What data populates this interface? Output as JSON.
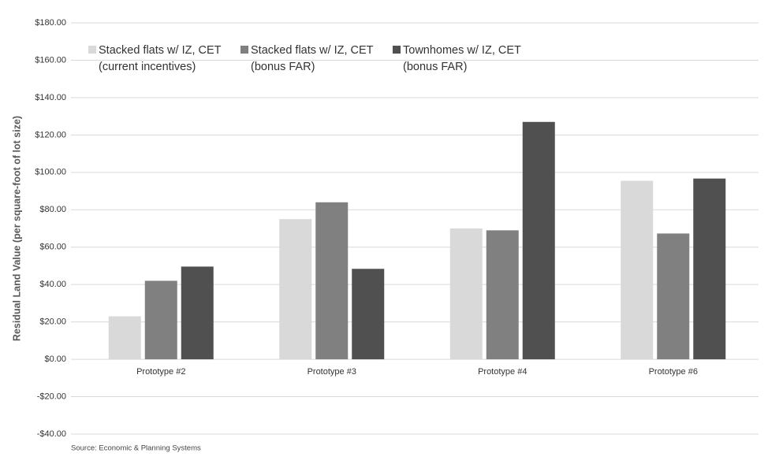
{
  "chart_data": {
    "type": "bar",
    "y_label": "Residual Land Value (per square-foot of lot size)",
    "source": "Source: Economic & Planning Systems",
    "categories": [
      "Prototype #2",
      "Prototype #3",
      "Prototype #4",
      "Prototype #6"
    ],
    "series": [
      {
        "name": "Stacked flats w/ IZ, CET (current incentives)",
        "color": "#d9d9d9",
        "values": [
          23,
          75,
          70,
          95.5
        ]
      },
      {
        "name": "Stacked flats w/ IZ, CET (bonus FAR)",
        "color": "#808080",
        "values": [
          42,
          84,
          69,
          67.3
        ]
      },
      {
        "name": "Townhomes w/ IZ, CET (bonus FAR)",
        "color": "#505050",
        "values": [
          49.6,
          48.4,
          127,
          96.7
        ]
      }
    ],
    "ylim": [
      -40,
      180
    ],
    "yticks": [
      {
        "value": -40,
        "label": "-$40.00"
      },
      {
        "value": -20,
        "label": "-$20.00"
      },
      {
        "value": 0,
        "label": "$0.00"
      },
      {
        "value": 20,
        "label": "$20.00"
      },
      {
        "value": 40,
        "label": "$40.00"
      },
      {
        "value": 60,
        "label": "$60.00"
      },
      {
        "value": 80,
        "label": "$80.00"
      },
      {
        "value": 100,
        "label": "$100.00"
      },
      {
        "value": 120,
        "label": "$120.00"
      },
      {
        "value": 140,
        "label": "$140.00"
      },
      {
        "value": 160,
        "label": "$160.00"
      },
      {
        "value": 180,
        "label": "$180.00"
      }
    ],
    "grid": true,
    "legend": "top"
  }
}
